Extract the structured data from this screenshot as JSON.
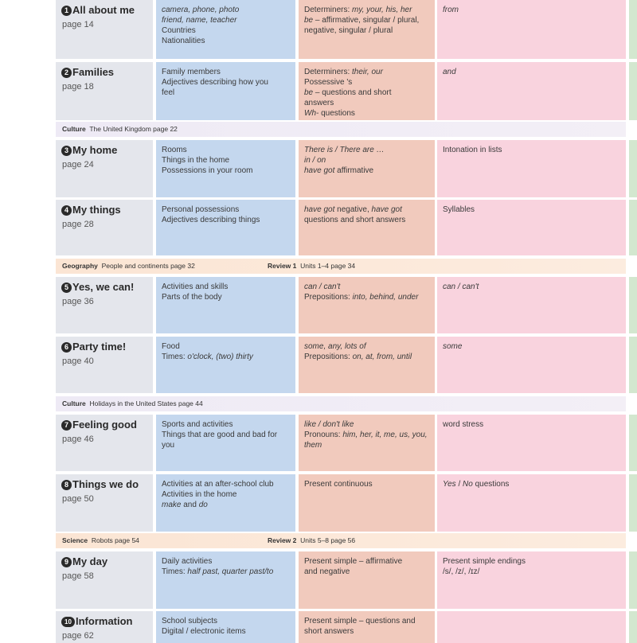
{
  "units": [
    {
      "number": "1",
      "title": "All about me",
      "page": "page 14",
      "vocabulary": [
        [
          {
            "t": "camera, phone, photo",
            "i": true
          }
        ],
        [
          {
            "t": "friend, name, teacher",
            "i": true
          }
        ],
        [
          {
            "t": "Countries",
            "i": false
          }
        ],
        [
          {
            "t": "Nationalities",
            "i": false
          }
        ]
      ],
      "grammar": [
        [
          {
            "t": "Determiners: ",
            "i": false
          },
          {
            "t": "my, your, his, her",
            "i": true
          }
        ],
        [
          {
            "t": "be",
            "i": true
          },
          {
            "t": " – affirmative, singular / plural,",
            "i": false
          }
        ],
        [
          {
            "t": "negative, singular / plural",
            "i": false
          }
        ]
      ],
      "pronunciation": [
        [
          {
            "t": "from",
            "i": true
          }
        ]
      ]
    },
    {
      "number": "2",
      "title": "Families",
      "page": "page 18",
      "vocabulary": [
        [
          {
            "t": "Family members",
            "i": false
          }
        ],
        [
          {
            "t": "Adjectives describing how you",
            "i": false
          }
        ],
        [
          {
            "t": "feel",
            "i": false
          }
        ]
      ],
      "grammar": [
        [
          {
            "t": "Determiners: ",
            "i": false
          },
          {
            "t": "their, our",
            "i": true
          }
        ],
        [
          {
            "t": "Possessive 's",
            "i": false
          }
        ],
        [
          {
            "t": "be",
            "i": true
          },
          {
            "t": " – questions and short",
            "i": false
          }
        ],
        [
          {
            "t": "answers",
            "i": false
          }
        ],
        [
          {
            "t": "Wh-",
            "i": true
          },
          {
            "t": " questions",
            "i": false
          }
        ]
      ],
      "pronunciation": [
        [
          {
            "t": "and",
            "i": true
          }
        ]
      ]
    },
    {
      "number": "3",
      "title": "My home",
      "page": "page 24",
      "vocabulary": [
        [
          {
            "t": "Rooms",
            "i": false
          }
        ],
        [
          {
            "t": "Things in the home",
            "i": false
          }
        ],
        [
          {
            "t": "Possessions in your room",
            "i": false
          }
        ]
      ],
      "grammar": [
        [
          {
            "t": "There is / There are …",
            "i": true
          }
        ],
        [
          {
            "t": "in / on",
            "i": true
          }
        ],
        [
          {
            "t": "have got",
            "i": true
          },
          {
            "t": " affirmative",
            "i": false
          }
        ]
      ],
      "pronunciation": [
        [
          {
            "t": "Intonation in lists",
            "i": false
          }
        ]
      ]
    },
    {
      "number": "4",
      "title": "My things",
      "page": "page 28",
      "vocabulary": [
        [
          {
            "t": "Personal possessions",
            "i": false
          }
        ],
        [
          {
            "t": "Adjectives describing things",
            "i": false
          }
        ]
      ],
      "grammar": [
        [
          {
            "t": "have got",
            "i": true
          },
          {
            "t": " negative, ",
            "i": false
          },
          {
            "t": "have got",
            "i": true
          }
        ],
        [
          {
            "t": "questions and short answers",
            "i": false
          }
        ]
      ],
      "pronunciation": [
        [
          {
            "t": "Syllables",
            "i": false
          }
        ]
      ]
    },
    {
      "number": "5",
      "title": "Yes, we can!",
      "page": "page 36",
      "vocabulary": [
        [
          {
            "t": "Activities and skills",
            "i": false
          }
        ],
        [
          {
            "t": "Parts of the body",
            "i": false
          }
        ]
      ],
      "grammar": [
        [
          {
            "t": "can / can't",
            "i": true
          }
        ],
        [
          {
            "t": "Prepositions: ",
            "i": false
          },
          {
            "t": "into, behind, under",
            "i": true
          }
        ]
      ],
      "pronunciation": [
        [
          {
            "t": "can / can't",
            "i": true
          }
        ]
      ]
    },
    {
      "number": "6",
      "title": "Party time!",
      "page": "page 40",
      "vocabulary": [
        [
          {
            "t": "Food",
            "i": false
          }
        ],
        [
          {
            "t": "Times: ",
            "i": false
          },
          {
            "t": "o'clock, (two) thirty",
            "i": true
          }
        ]
      ],
      "grammar": [
        [
          {
            "t": "some, any, lots of",
            "i": true
          }
        ],
        [
          {
            "t": "Prepositions: ",
            "i": false
          },
          {
            "t": "on, at, from, until",
            "i": true
          }
        ]
      ],
      "pronunciation": [
        [
          {
            "t": "some",
            "i": true
          }
        ]
      ]
    },
    {
      "number": "7",
      "title": "Feeling good",
      "page": "page 46",
      "vocabulary": [
        [
          {
            "t": "Sports and activities",
            "i": false
          }
        ],
        [
          {
            "t": "Things that are good and bad for",
            "i": false
          }
        ],
        [
          {
            "t": "you",
            "i": false
          }
        ]
      ],
      "grammar": [
        [
          {
            "t": "like / don't like",
            "i": true
          }
        ],
        [
          {
            "t": "Pronouns: ",
            "i": false
          },
          {
            "t": "him, her, it, me, us, you,",
            "i": true
          }
        ],
        [
          {
            "t": "them",
            "i": true
          }
        ]
      ],
      "pronunciation": [
        [
          {
            "t": "word stress",
            "i": false
          }
        ]
      ]
    },
    {
      "number": "8",
      "title": "Things we do",
      "page": "page 50",
      "vocabulary": [
        [
          {
            "t": "Activities at an after-school club",
            "i": false
          }
        ],
        [
          {
            "t": "Activities in the home",
            "i": false
          }
        ],
        [
          {
            "t": "make",
            "i": true
          },
          {
            "t": " and ",
            "i": false
          },
          {
            "t": "do",
            "i": true
          }
        ]
      ],
      "grammar": [
        [
          {
            "t": "Present continuous",
            "i": false
          }
        ]
      ],
      "pronunciation": [
        [
          {
            "t": "Yes",
            "i": true
          },
          {
            "t": " / ",
            "i": false
          },
          {
            "t": "No",
            "i": true
          },
          {
            "t": " questions",
            "i": false
          }
        ]
      ]
    },
    {
      "number": "9",
      "title": "My day",
      "page": "page 58",
      "vocabulary": [
        [
          {
            "t": "Daily activities",
            "i": false
          }
        ],
        [
          {
            "t": "Times: ",
            "i": false
          },
          {
            "t": "half past, quarter past/to",
            "i": true
          }
        ]
      ],
      "grammar": [
        [
          {
            "t": "Present simple – affirmative",
            "i": false
          }
        ],
        [
          {
            "t": "and negative",
            "i": false
          }
        ]
      ],
      "pronunciation": [
        [
          {
            "t": "Present simple endings",
            "i": false
          }
        ],
        [
          {
            "t": "/s/, /z/, /ɪz/",
            "i": false
          }
        ]
      ]
    },
    {
      "number": "10",
      "title": "Information",
      "page": "page 62",
      "vocabulary": [
        [
          {
            "t": "School subjects",
            "i": false
          }
        ],
        [
          {
            "t": "Digital / electronic items",
            "i": false
          }
        ]
      ],
      "grammar": [
        [
          {
            "t": "Present simple – questions and",
            "i": false
          }
        ],
        [
          {
            "t": "short answers",
            "i": false
          }
        ]
      ],
      "pronunciation": []
    }
  ],
  "bands": [
    {
      "kind": "culture",
      "label": "Culture",
      "text": "The United Kingdom page 22",
      "review_label": "",
      "review_text": ""
    },
    {
      "kind": "geo",
      "label": "Geography",
      "text": "People and continents page 32",
      "review_label": "Review 1",
      "review_text": "Units 1–4 page 34"
    },
    {
      "kind": "culture",
      "label": "Culture",
      "text": "Holidays in the United States page 44",
      "review_label": "",
      "review_text": ""
    },
    {
      "kind": "geo",
      "label": "Science",
      "text": "Robots page 54",
      "review_label": "Review 2",
      "review_text": "Units 5–8 page 56"
    }
  ]
}
